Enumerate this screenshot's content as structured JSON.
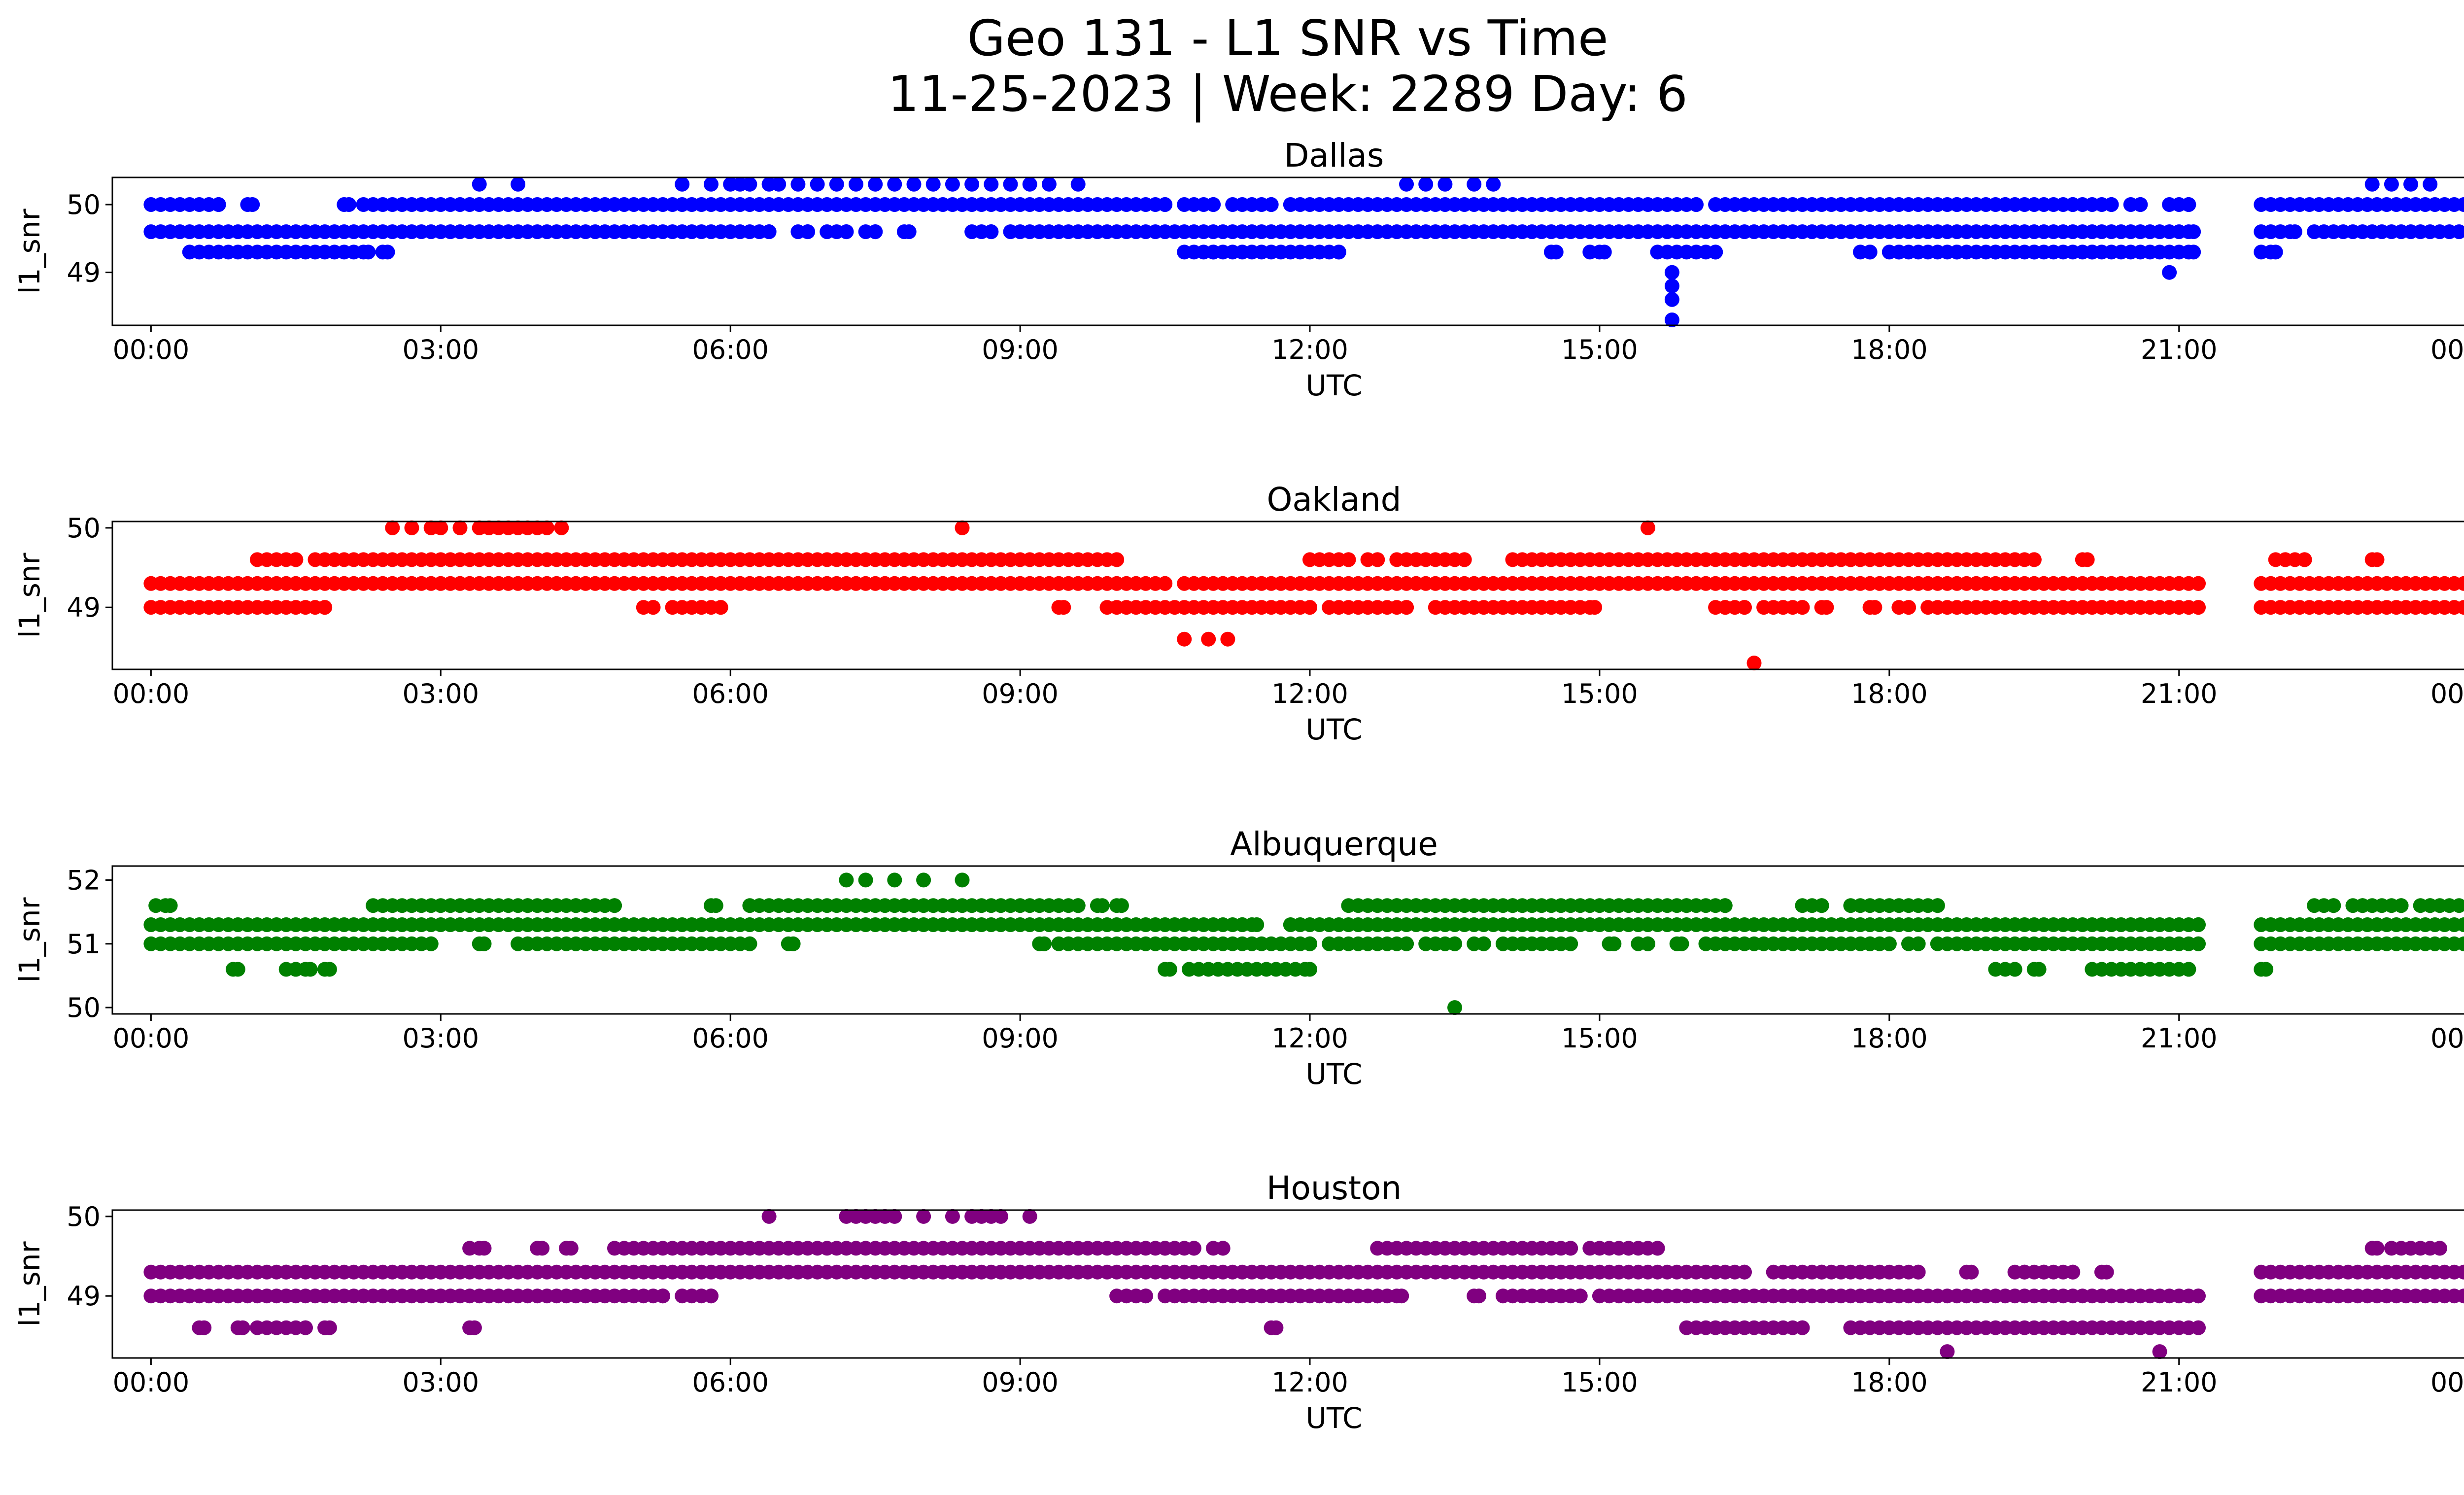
{
  "figure": {
    "title_line1": "Geo 131 - L1 SNR vs Time",
    "title_line2": "11-25-2023 | Week: 2289 Day: 6"
  },
  "chart_data": [
    {
      "type": "scatter",
      "title": "Dallas",
      "xlabel": "UTC",
      "ylabel": "l1_snr",
      "color": "#0000ff",
      "xlim": [
        -0.4,
        24.9
      ],
      "ylim": [
        48.22,
        50.4
      ],
      "xticks": [
        "00:00",
        "03:00",
        "06:00",
        "09:00",
        "12:00",
        "15:00",
        "18:00",
        "21:00",
        "00:00"
      ],
      "yticks": [
        49,
        50
      ],
      "bands": [
        {
          "y": 50.0,
          "ranges": [
            [
              0.0,
              0.7
            ],
            [
              1.0,
              1.05
            ],
            [
              2.0,
              2.05
            ],
            [
              2.2,
              10.5
            ],
            [
              10.7,
              11.0
            ],
            [
              11.2,
              11.6
            ],
            [
              11.8,
              16.0
            ],
            [
              16.2,
              18.7
            ],
            [
              18.8,
              19.2
            ],
            [
              19.3,
              19.9
            ],
            [
              20.0,
              20.3
            ],
            [
              20.5,
              20.6
            ],
            [
              20.9,
              21.1
            ],
            [
              21.85,
              24.0
            ]
          ]
        },
        {
          "y": 49.6,
          "ranges": [
            [
              0.0,
              6.4
            ],
            [
              6.7,
              6.8
            ],
            [
              7.0,
              7.2
            ],
            [
              7.4,
              7.5
            ],
            [
              7.8,
              7.85
            ],
            [
              8.5,
              8.7
            ],
            [
              8.9,
              17.7
            ],
            [
              17.8,
              21.15
            ],
            [
              21.85,
              22.2
            ],
            [
              22.4,
              24.0
            ]
          ]
        },
        {
          "y": 49.3,
          "ranges": [
            [
              0.4,
              2.25
            ],
            [
              2.4,
              2.45
            ],
            [
              10.7,
              11.0
            ],
            [
              11.1,
              12.3
            ],
            [
              14.5,
              14.55
            ],
            [
              14.9,
              15.05
            ],
            [
              15.6,
              16.2
            ],
            [
              17.7,
              17.8
            ],
            [
              18.0,
              18.1
            ],
            [
              18.2,
              18.7
            ],
            [
              18.8,
              19.1
            ],
            [
              19.2,
              19.5
            ],
            [
              19.6,
              20.1
            ],
            [
              20.2,
              21.15
            ],
            [
              21.85,
              22.0
            ]
          ]
        }
      ],
      "points": [
        [
          3.4,
          50.3
        ],
        [
          3.8,
          50.3
        ],
        [
          5.5,
          50.3
        ],
        [
          5.8,
          50.3
        ],
        [
          6.0,
          50.3
        ],
        [
          6.1,
          50.3
        ],
        [
          6.2,
          50.3
        ],
        [
          6.4,
          50.3
        ],
        [
          6.5,
          50.3
        ],
        [
          6.7,
          50.3
        ],
        [
          6.9,
          50.3
        ],
        [
          7.1,
          50.3
        ],
        [
          7.3,
          50.3
        ],
        [
          7.5,
          50.3
        ],
        [
          7.7,
          50.3
        ],
        [
          7.9,
          50.3
        ],
        [
          8.1,
          50.3
        ],
        [
          8.3,
          50.3
        ],
        [
          8.5,
          50.3
        ],
        [
          8.7,
          50.3
        ],
        [
          8.9,
          50.3
        ],
        [
          9.1,
          50.3
        ],
        [
          9.3,
          50.3
        ],
        [
          9.6,
          50.3
        ],
        [
          13.0,
          50.3
        ],
        [
          13.2,
          50.3
        ],
        [
          13.4,
          50.3
        ],
        [
          13.7,
          50.3
        ],
        [
          13.9,
          50.3
        ],
        [
          23.0,
          50.3
        ],
        [
          23.2,
          50.3
        ],
        [
          23.4,
          50.3
        ],
        [
          23.6,
          50.3
        ],
        [
          15.75,
          49.0
        ],
        [
          15.75,
          48.8
        ],
        [
          15.75,
          48.6
        ],
        [
          15.75,
          48.3
        ],
        [
          20.9,
          49.0
        ]
      ]
    },
    {
      "type": "scatter",
      "title": "Oakland",
      "xlabel": "UTC",
      "ylabel": "l1_snr",
      "color": "#ff0000",
      "xlim": [
        -0.4,
        24.9
      ],
      "ylim": [
        48.22,
        50.08
      ],
      "xticks": [
        "00:00",
        "03:00",
        "06:00",
        "09:00",
        "12:00",
        "15:00",
        "18:00",
        "21:00",
        "00:00"
      ],
      "yticks": [
        49,
        50
      ],
      "bands": [
        {
          "y": 49.6,
          "ranges": [
            [
              1.1,
              1.5
            ],
            [
              1.7,
              10.0
            ],
            [
              12.0,
              12.4
            ],
            [
              12.6,
              12.7
            ],
            [
              12.9,
              13.1
            ],
            [
              13.2,
              13.6
            ],
            [
              14.1,
              17.6
            ],
            [
              17.7,
              18.6
            ],
            [
              18.7,
              19.3
            ],
            [
              19.4,
              19.5
            ],
            [
              20.0,
              20.05
            ],
            [
              22.0,
              22.1
            ],
            [
              22.2,
              22.3
            ],
            [
              23.0,
              23.05
            ]
          ]
        },
        {
          "y": 49.3,
          "ranges": [
            [
              0.0,
              3.6
            ],
            [
              3.7,
              10.5
            ],
            [
              10.7,
              21.2
            ],
            [
              21.85,
              24.0
            ]
          ]
        },
        {
          "y": 49.0,
          "ranges": [
            [
              0.0,
              1.8
            ],
            [
              5.1,
              5.2
            ],
            [
              5.4,
              5.7
            ],
            [
              5.8,
              5.9
            ],
            [
              9.4,
              9.45
            ],
            [
              9.9,
              12.0
            ],
            [
              12.2,
              13.0
            ],
            [
              13.3,
              14.0
            ],
            [
              14.1,
              14.5
            ],
            [
              14.6,
              14.7
            ],
            [
              14.8,
              14.95
            ],
            [
              16.2,
              16.3
            ],
            [
              16.4,
              16.5
            ],
            [
              16.7,
              16.9
            ],
            [
              17.0,
              17.1
            ],
            [
              17.3,
              17.35
            ],
            [
              17.8,
              17.85
            ],
            [
              18.1,
              18.2
            ],
            [
              18.4,
              21.2
            ],
            [
              21.85,
              24.0
            ]
          ]
        }
      ],
      "points": [
        [
          2.5,
          50.0
        ],
        [
          2.7,
          50.0
        ],
        [
          2.9,
          50.0
        ],
        [
          3.0,
          50.0
        ],
        [
          3.2,
          50.0
        ],
        [
          3.4,
          50.0
        ],
        [
          3.5,
          50.0
        ],
        [
          3.6,
          50.0
        ],
        [
          3.7,
          50.0
        ],
        [
          3.8,
          50.0
        ],
        [
          3.9,
          50.0
        ],
        [
          4.0,
          50.0
        ],
        [
          4.1,
          50.0
        ],
        [
          4.25,
          50.0
        ],
        [
          8.4,
          50.0
        ],
        [
          15.5,
          50.0
        ],
        [
          10.7,
          48.6
        ],
        [
          10.95,
          48.6
        ],
        [
          11.15,
          48.6
        ],
        [
          16.6,
          48.3
        ]
      ]
    },
    {
      "type": "scatter",
      "title": "Albuquerque",
      "xlabel": "UTC",
      "ylabel": "l1_snr",
      "color": "#008000",
      "xlim": [
        -0.4,
        24.9
      ],
      "ylim": [
        49.9,
        52.22
      ],
      "xticks": [
        "00:00",
        "03:00",
        "06:00",
        "09:00",
        "12:00",
        "15:00",
        "18:00",
        "21:00",
        "00:00"
      ],
      "yticks": [
        50,
        51,
        52
      ],
      "bands": [
        {
          "y": 51.6,
          "ranges": [
            [
              0.05,
              0.2
            ],
            [
              2.3,
              3.9
            ],
            [
              4.0,
              4.4
            ],
            [
              4.5,
              4.8
            ],
            [
              5.8,
              5.85
            ],
            [
              6.2,
              9.6
            ],
            [
              9.8,
              9.85
            ],
            [
              10.0,
              10.05
            ],
            [
              12.4,
              12.9
            ],
            [
              13.0,
              13.1
            ],
            [
              13.2,
              14.1
            ],
            [
              14.2,
              15.9
            ],
            [
              16.0,
              16.3
            ],
            [
              17.1,
              17.3
            ],
            [
              17.6,
              18.5
            ],
            [
              22.4,
              22.6
            ],
            [
              22.8,
              22.9
            ],
            [
              23.0,
              23.3
            ],
            [
              23.5,
              23.6
            ],
            [
              23.7,
              24.0
            ]
          ]
        },
        {
          "y": 51.3,
          "ranges": [
            [
              0.0,
              11.3
            ],
            [
              11.4,
              11.45
            ],
            [
              11.8,
              21.2
            ],
            [
              21.85,
              24.0
            ]
          ]
        },
        {
          "y": 51.0,
          "ranges": [
            [
              0.0,
              2.9
            ],
            [
              3.4,
              3.45
            ],
            [
              3.8,
              3.9
            ],
            [
              4.0,
              6.2
            ],
            [
              6.6,
              6.65
            ],
            [
              9.2,
              9.25
            ],
            [
              9.4,
              9.5
            ],
            [
              9.6,
              12.0
            ],
            [
              12.2,
              13.0
            ],
            [
              13.2,
              13.5
            ],
            [
              13.7,
              13.8
            ],
            [
              14.0,
              14.7
            ],
            [
              15.1,
              15.15
            ],
            [
              15.4,
              15.5
            ],
            [
              15.8,
              15.85
            ],
            [
              16.1,
              17.8
            ],
            [
              17.9,
              18.0
            ],
            [
              18.2,
              18.3
            ],
            [
              18.5,
              21.2
            ],
            [
              21.85,
              24.0
            ]
          ]
        },
        {
          "y": 50.6,
          "ranges": [
            [
              0.85,
              0.9
            ],
            [
              1.4,
              1.5
            ],
            [
              1.6,
              1.65
            ],
            [
              1.8,
              1.85
            ],
            [
              10.5,
              10.55
            ],
            [
              10.75,
              12.0
            ],
            [
              19.1,
              19.3
            ],
            [
              19.5,
              19.55
            ],
            [
              20.1,
              21.1
            ],
            [
              21.85,
              21.9
            ]
          ]
        }
      ],
      "points": [
        [
          7.2,
          52.0
        ],
        [
          7.4,
          52.0
        ],
        [
          7.7,
          52.0
        ],
        [
          8.0,
          52.0
        ],
        [
          8.4,
          52.0
        ],
        [
          13.5,
          50.0
        ]
      ]
    },
    {
      "type": "scatter",
      "title": "Houston",
      "xlabel": "UTC",
      "ylabel": "l1_snr",
      "color": "#800080",
      "xlim": [
        -0.4,
        24.9
      ],
      "ylim": [
        48.22,
        50.08
      ],
      "xticks": [
        "00:00",
        "03:00",
        "06:00",
        "09:00",
        "12:00",
        "15:00",
        "18:00",
        "21:00",
        "00:00"
      ],
      "yticks": [
        49,
        50
      ],
      "bands": [
        {
          "y": 49.6,
          "ranges": [
            [
              3.3,
              3.45
            ],
            [
              4.0,
              4.05
            ],
            [
              4.3,
              4.35
            ],
            [
              4.8,
              10.5
            ],
            [
              10.6,
              10.8
            ],
            [
              11.0,
              11.1
            ],
            [
              12.7,
              14.7
            ],
            [
              14.9,
              15.3
            ],
            [
              15.4,
              15.6
            ],
            [
              23.0,
              23.05
            ],
            [
              23.2,
              23.4
            ],
            [
              23.5,
              23.7
            ]
          ]
        },
        {
          "y": 49.3,
          "ranges": [
            [
              0.0,
              1.4
            ],
            [
              1.5,
              16.5
            ],
            [
              16.8,
              17.3
            ],
            [
              17.4,
              17.7
            ],
            [
              17.8,
              18.3
            ],
            [
              18.8,
              18.85
            ],
            [
              19.3,
              19.4
            ],
            [
              19.5,
              19.6
            ],
            [
              19.7,
              19.9
            ],
            [
              20.2,
              20.25
            ],
            [
              21.85,
              24.0
            ]
          ]
        },
        {
          "y": 49.0,
          "ranges": [
            [
              0.0,
              5.3
            ],
            [
              5.5,
              5.8
            ],
            [
              10.0,
              10.3
            ],
            [
              10.5,
              12.7
            ],
            [
              12.8,
              12.95
            ],
            [
              13.7,
              13.75
            ],
            [
              14.0,
              14.8
            ],
            [
              15.0,
              21.2
            ],
            [
              21.85,
              24.0
            ]
          ]
        },
        {
          "y": 48.6,
          "ranges": [
            [
              0.5,
              0.55
            ],
            [
              0.9,
              0.95
            ],
            [
              1.1,
              1.6
            ],
            [
              1.8,
              1.85
            ],
            [
              3.3,
              3.35
            ],
            [
              11.6,
              11.65
            ],
            [
              15.9,
              17.1
            ],
            [
              17.6,
              21.2
            ]
          ]
        }
      ],
      "points": [
        [
          6.4,
          50.0
        ],
        [
          7.2,
          50.0
        ],
        [
          7.3,
          50.0
        ],
        [
          7.4,
          50.0
        ],
        [
          7.5,
          50.0
        ],
        [
          7.6,
          50.0
        ],
        [
          7.7,
          50.0
        ],
        [
          8.0,
          50.0
        ],
        [
          8.3,
          50.0
        ],
        [
          8.5,
          50.0
        ],
        [
          8.6,
          50.0
        ],
        [
          8.7,
          50.0
        ],
        [
          8.8,
          50.0
        ],
        [
          9.1,
          50.0
        ],
        [
          18.6,
          48.3
        ],
        [
          20.8,
          48.3
        ]
      ]
    }
  ]
}
